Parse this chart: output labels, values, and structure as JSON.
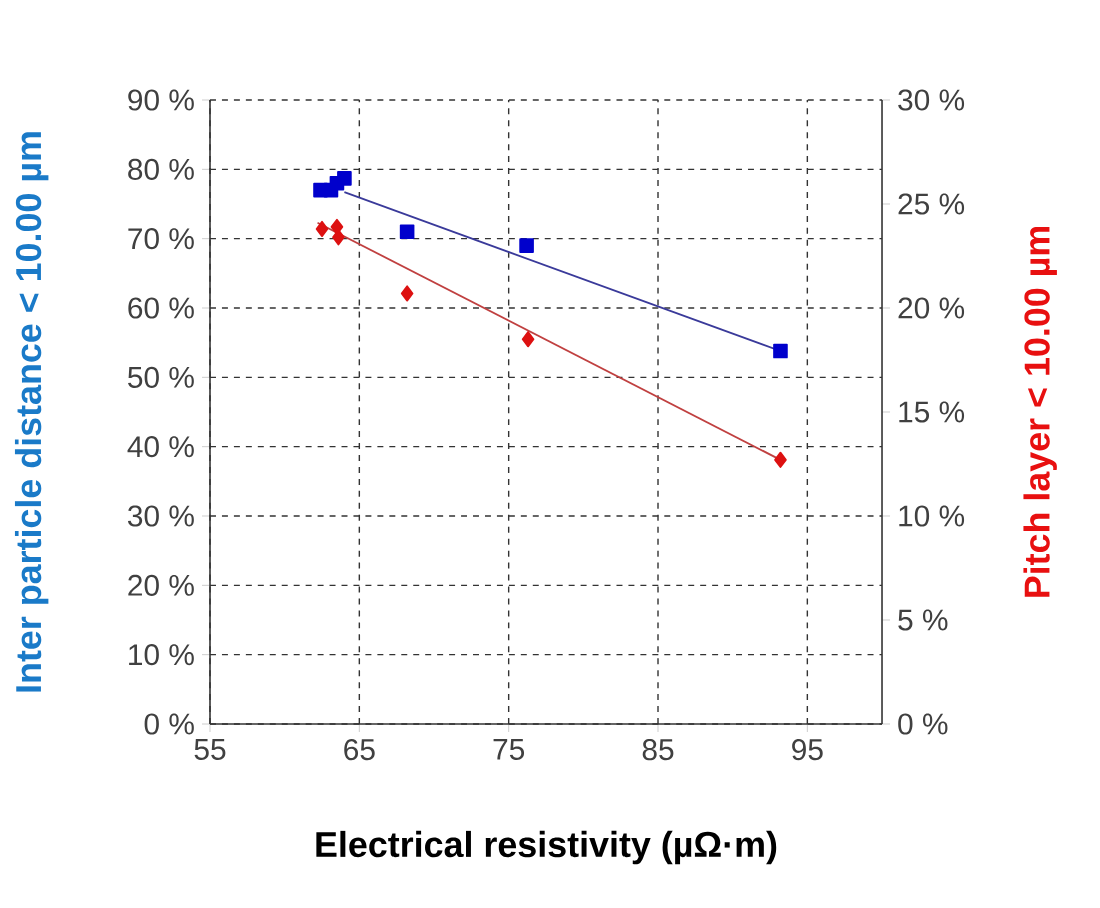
{
  "chart_data": {
    "type": "scatter",
    "xlabel": "Electrical resistivity (µΩ·m)",
    "ylabel": "Inter particle distance < 10.00 µm",
    "y2label": "Pitch layer < 10.00 µm",
    "xlim": [
      55,
      100
    ],
    "xticks": [
      55,
      65,
      75,
      85,
      95
    ],
    "ylim": [
      0,
      90
    ],
    "yticks": [
      {
        "value": 0,
        "label": "0 %"
      },
      {
        "value": 10,
        "label": "10 %"
      },
      {
        "value": 20,
        "label": "20 %"
      },
      {
        "value": 30,
        "label": "30 %"
      },
      {
        "value": 40,
        "label": "40 %"
      },
      {
        "value": 50,
        "label": "50 %"
      },
      {
        "value": 60,
        "label": "60 %"
      },
      {
        "value": 70,
        "label": "70 %"
      },
      {
        "value": 80,
        "label": "80 %"
      },
      {
        "value": 90,
        "label": "90 %"
      }
    ],
    "y2lim": [
      0,
      30
    ],
    "y2ticks": [
      {
        "value": 0,
        "label": "0 %"
      },
      {
        "value": 5,
        "label": "5 %"
      },
      {
        "value": 10,
        "label": "10 %"
      },
      {
        "value": 15,
        "label": "15 %"
      },
      {
        "value": 20,
        "label": "20 %"
      },
      {
        "value": 25,
        "label": "25 %"
      },
      {
        "value": 30,
        "label": "30 %"
      }
    ],
    "grid": true,
    "series": [
      {
        "color": "#0000cc",
        "marker": "square",
        "x": [
          62.4,
          63.1,
          63.5,
          64.0,
          68.2,
          76.2,
          93.2
        ],
        "values": [
          77,
          77,
          78,
          78.7,
          71,
          69,
          53.8
        ]
      },
      {
        "color": "#dd1111",
        "marker": "diamond",
        "axis": "y2",
        "x": [
          62.5,
          63.5,
          63.6,
          68.2,
          76.3,
          93.2
        ],
        "values": [
          23.8,
          23.9,
          23.4,
          20.7,
          18.5,
          12.7
        ]
      },
      {
        "type": "line",
        "color": "#3a3a9a",
        "marker": "none",
        "line_style": "solid",
        "x": [
          64.0,
          93.2
        ],
        "values": [
          76.7,
          53.8
        ]
      },
      {
        "type": "line",
        "color": "#c04040",
        "marker": "none",
        "line_style": "solid",
        "axis": "y2",
        "x": [
          62.2,
          93.2
        ],
        "values": [
          24.1,
          12.7
        ]
      }
    ]
  }
}
